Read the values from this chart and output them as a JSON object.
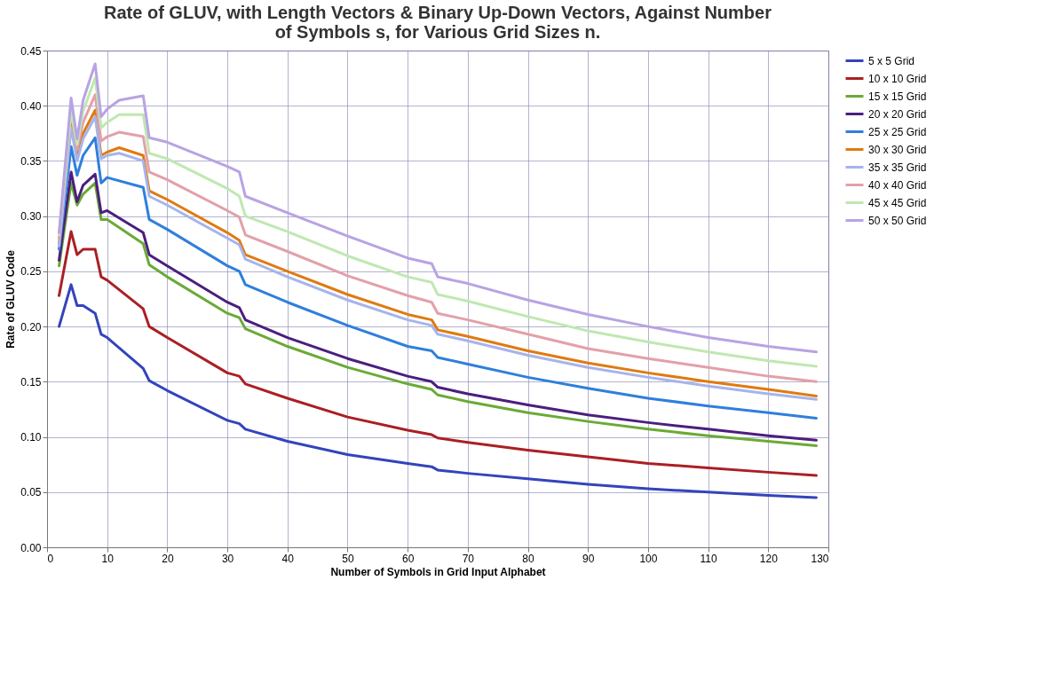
{
  "chart_data": {
    "type": "line",
    "title": "Rate of GLUV, with Length Vectors & Binary Up-Down Vectors, Against Number of Symbols s, for Various Grid Sizes n.",
    "xlabel": "Number of Symbols in Grid Input Alphabet",
    "ylabel": "Rate of GLUV Code",
    "x": [
      2,
      4,
      5,
      6,
      8,
      9,
      10,
      16,
      17,
      20,
      30,
      32,
      33,
      40,
      50,
      60,
      64,
      65,
      70,
      80,
      90,
      100,
      110,
      120,
      128
    ],
    "series": [
      {
        "name": "5 x 5 Grid",
        "color": "#3344bb",
        "values": [
          0.2,
          0.238,
          0.219,
          0.219,
          0.212,
          0.193,
          0.19,
          0.162,
          0.151,
          0.142,
          0.115,
          0.112,
          0.107,
          0.096,
          0.084,
          0.076,
          0.073,
          0.07,
          0.067,
          0.062,
          0.057,
          0.053,
          0.05,
          0.047,
          0.045
        ]
      },
      {
        "name": "10 x 10 Grid",
        "color": "#aa1f24",
        "values": [
          0.228,
          0.286,
          0.265,
          0.27,
          0.27,
          0.245,
          0.242,
          0.216,
          0.2,
          0.19,
          0.158,
          0.155,
          0.148,
          0.135,
          0.118,
          0.106,
          0.102,
          0.099,
          0.095,
          0.088,
          0.082,
          0.076,
          0.072,
          0.068,
          0.065
        ]
      },
      {
        "name": "15 x 15 Grid",
        "color": "#6aaa35",
        "values": [
          0.255,
          0.33,
          0.31,
          0.32,
          0.33,
          0.297,
          0.297,
          0.275,
          0.256,
          0.245,
          0.212,
          0.208,
          0.198,
          0.182,
          0.163,
          0.148,
          0.143,
          0.138,
          0.132,
          0.122,
          0.114,
          0.107,
          0.101,
          0.096,
          0.092
        ]
      },
      {
        "name": "20 x 20 Grid",
        "color": "#4b1e7e",
        "values": [
          0.26,
          0.34,
          0.313,
          0.328,
          0.338,
          0.303,
          0.305,
          0.285,
          0.265,
          0.255,
          0.222,
          0.217,
          0.206,
          0.19,
          0.171,
          0.155,
          0.15,
          0.145,
          0.139,
          0.129,
          0.12,
          0.113,
          0.107,
          0.101,
          0.097
        ]
      },
      {
        "name": "25 x 25 Grid",
        "color": "#2f7fdc",
        "values": [
          0.27,
          0.363,
          0.337,
          0.355,
          0.371,
          0.33,
          0.335,
          0.326,
          0.297,
          0.288,
          0.255,
          0.25,
          0.238,
          0.222,
          0.201,
          0.182,
          0.178,
          0.172,
          0.166,
          0.154,
          0.144,
          0.135,
          0.128,
          0.122,
          0.117
        ]
      },
      {
        "name": "30 x 30 Grid",
        "color": "#e07a10",
        "x": [
          2,
          4,
          5,
          6,
          8,
          9,
          10,
          12,
          16,
          17,
          20,
          30,
          32,
          33,
          40,
          50,
          60,
          64,
          65,
          70,
          80,
          90,
          100,
          110,
          120,
          128
        ],
        "values": [
          0.275,
          0.385,
          0.355,
          0.375,
          0.396,
          0.355,
          0.358,
          0.362,
          0.355,
          0.323,
          0.315,
          0.285,
          0.278,
          0.265,
          0.25,
          0.229,
          0.211,
          0.206,
          0.197,
          0.191,
          0.178,
          0.167,
          0.158,
          0.15,
          0.143,
          0.137
        ]
      },
      {
        "name": "35 x 35 Grid",
        "color": "#a6b4ec",
        "x": [
          2,
          4,
          5,
          6,
          8,
          9,
          10,
          12,
          16,
          17,
          20,
          30,
          32,
          33,
          40,
          50,
          60,
          64,
          65,
          70,
          80,
          90,
          100,
          110,
          120,
          128
        ],
        "values": [
          0.273,
          0.38,
          0.35,
          0.37,
          0.39,
          0.352,
          0.355,
          0.357,
          0.35,
          0.318,
          0.31,
          0.28,
          0.274,
          0.261,
          0.245,
          0.224,
          0.206,
          0.201,
          0.193,
          0.187,
          0.174,
          0.163,
          0.154,
          0.146,
          0.139,
          0.134
        ]
      },
      {
        "name": "40 x 40 Grid",
        "color": "#e3a0a8",
        "x": [
          2,
          4,
          5,
          6,
          8,
          9,
          10,
          12,
          16,
          17,
          20,
          30,
          32,
          33,
          40,
          50,
          60,
          64,
          65,
          70,
          80,
          90,
          100,
          110,
          120,
          128
        ],
        "values": [
          0.28,
          0.395,
          0.36,
          0.385,
          0.41,
          0.368,
          0.372,
          0.376,
          0.372,
          0.34,
          0.333,
          0.305,
          0.299,
          0.283,
          0.268,
          0.246,
          0.228,
          0.222,
          0.212,
          0.206,
          0.193,
          0.18,
          0.171,
          0.163,
          0.155,
          0.15
        ]
      },
      {
        "name": "45 x 45 Grid",
        "color": "#bfe8b0",
        "x": [
          2,
          4,
          5,
          6,
          8,
          9,
          10,
          12,
          16,
          17,
          20,
          30,
          32,
          33,
          40,
          50,
          60,
          64,
          65,
          70,
          80,
          90,
          100,
          110,
          120,
          128
        ],
        "values": [
          0.283,
          0.395,
          0.365,
          0.395,
          0.425,
          0.38,
          0.385,
          0.392,
          0.392,
          0.357,
          0.352,
          0.325,
          0.318,
          0.3,
          0.286,
          0.264,
          0.245,
          0.24,
          0.229,
          0.223,
          0.209,
          0.196,
          0.186,
          0.177,
          0.169,
          0.164
        ]
      },
      {
        "name": "50 x 50 Grid",
        "color": "#b8a3e3",
        "x": [
          2,
          4,
          5,
          6,
          8,
          9,
          10,
          12,
          16,
          17,
          20,
          30,
          32,
          33,
          40,
          50,
          60,
          64,
          65,
          70,
          80,
          90,
          100,
          110,
          120,
          128
        ],
        "values": [
          0.285,
          0.407,
          0.37,
          0.405,
          0.438,
          0.39,
          0.397,
          0.405,
          0.409,
          0.371,
          0.367,
          0.345,
          0.34,
          0.318,
          0.303,
          0.282,
          0.262,
          0.257,
          0.245,
          0.239,
          0.224,
          0.211,
          0.2,
          0.19,
          0.182,
          0.177
        ]
      }
    ],
    "xlim": [
      0,
      130
    ],
    "xticks": [
      0,
      10,
      20,
      30,
      40,
      50,
      60,
      70,
      80,
      90,
      100,
      110,
      120,
      130
    ],
    "ylim": [
      0,
      0.45
    ],
    "yticks": [
      {
        "value": 0,
        "label": "0.00"
      },
      {
        "value": 0.05,
        "label": "0.05"
      },
      {
        "value": 0.1,
        "label": "0.10"
      },
      {
        "value": 0.15,
        "label": "0.15"
      },
      {
        "value": 0.2,
        "label": "0.20"
      },
      {
        "value": 0.25,
        "label": "0.25"
      },
      {
        "value": 0.3,
        "label": "0.30"
      },
      {
        "value": 0.35,
        "label": "0.35"
      },
      {
        "value": 0.4,
        "label": "0.40"
      },
      {
        "value": 0.45,
        "label": "0.45"
      }
    ],
    "grid": true,
    "legend": "right",
    "marker": "none",
    "line_style": "solid"
  }
}
